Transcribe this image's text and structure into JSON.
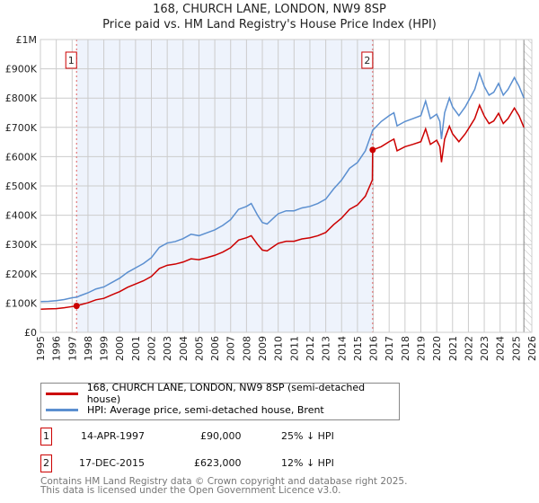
{
  "chart_data": {
    "type": "line",
    "title": "168, CHURCH LANE, LONDON, NW9 8SP",
    "subtitle": "Price paid vs. HM Land Registry's House Price Index (HPI)",
    "xlim": [
      1995,
      2026
    ],
    "ylim": [
      0,
      1000000
    ],
    "x_ticks": [
      "1995",
      "1996",
      "1997",
      "1998",
      "1999",
      "2000",
      "2001",
      "2002",
      "2003",
      "2004",
      "2005",
      "2006",
      "2007",
      "2008",
      "2009",
      "2010",
      "2011",
      "2012",
      "2013",
      "2014",
      "2015",
      "2016",
      "2017",
      "2018",
      "2019",
      "2020",
      "2021",
      "2022",
      "2023",
      "2024",
      "2025",
      "2026"
    ],
    "y_ticks": [
      {
        "v": 0,
        "label": "£0"
      },
      {
        "v": 100000,
        "label": "£100K"
      },
      {
        "v": 200000,
        "label": "£200K"
      },
      {
        "v": 300000,
        "label": "£300K"
      },
      {
        "v": 400000,
        "label": "£400K"
      },
      {
        "v": 500000,
        "label": "£500K"
      },
      {
        "v": 600000,
        "label": "£600K"
      },
      {
        "v": 700000,
        "label": "£700K"
      },
      {
        "v": 800000,
        "label": "£800K"
      },
      {
        "v": 900000,
        "label": "£900K"
      },
      {
        "v": 1000000,
        "label": "£1M"
      }
    ],
    "grid": true,
    "forecast_start": 2025.5,
    "series": [
      {
        "name": "168, CHURCH LANE, LONDON, NW9 8SP (semi-detached house)",
        "color": "#cc0000",
        "unit": "thousand GBP",
        "points": [
          [
            1995,
            79
          ],
          [
            1995.5,
            80
          ],
          [
            1996,
            81
          ],
          [
            1996.5,
            84
          ],
          [
            1997,
            88
          ],
          [
            1997.3,
            90
          ],
          [
            1997.5,
            94
          ],
          [
            1998,
            101
          ],
          [
            1998.5,
            111
          ],
          [
            1999,
            116
          ],
          [
            1999.5,
            128
          ],
          [
            2000,
            139
          ],
          [
            2000.5,
            154
          ],
          [
            2001,
            165
          ],
          [
            2001.5,
            176
          ],
          [
            2002,
            191
          ],
          [
            2002.5,
            218
          ],
          [
            2003,
            229
          ],
          [
            2003.5,
            233
          ],
          [
            2004,
            240
          ],
          [
            2004.5,
            251
          ],
          [
            2005,
            248
          ],
          [
            2005.5,
            255
          ],
          [
            2006,
            263
          ],
          [
            2006.5,
            274
          ],
          [
            2007,
            289
          ],
          [
            2007.5,
            315
          ],
          [
            2008,
            323
          ],
          [
            2008.3,
            330
          ],
          [
            2008.7,
            300
          ],
          [
            2009,
            281
          ],
          [
            2009.3,
            278
          ],
          [
            2009.7,
            293
          ],
          [
            2010,
            304
          ],
          [
            2010.5,
            311
          ],
          [
            2011,
            311
          ],
          [
            2011.5,
            319
          ],
          [
            2012,
            323
          ],
          [
            2012.5,
            330
          ],
          [
            2013,
            341
          ],
          [
            2013.5,
            368
          ],
          [
            2014,
            390
          ],
          [
            2014.5,
            420
          ],
          [
            2015,
            435
          ],
          [
            2015.5,
            465
          ],
          [
            2015.94,
            520
          ],
          [
            2015.96,
            623
          ],
          [
            2016.5,
            634
          ],
          [
            2017,
            651
          ],
          [
            2017.3,
            660
          ],
          [
            2017.5,
            620
          ],
          [
            2018,
            634
          ],
          [
            2018.5,
            642
          ],
          [
            2019,
            651
          ],
          [
            2019.3,
            695
          ],
          [
            2019.6,
            642
          ],
          [
            2020,
            656
          ],
          [
            2020.2,
            634
          ],
          [
            2020.3,
            581
          ],
          [
            2020.5,
            660
          ],
          [
            2020.8,
            704
          ],
          [
            2021,
            678
          ],
          [
            2021.4,
            651
          ],
          [
            2021.8,
            678
          ],
          [
            2022,
            695
          ],
          [
            2022.4,
            730
          ],
          [
            2022.7,
            776
          ],
          [
            2023,
            739
          ],
          [
            2023.3,
            713
          ],
          [
            2023.6,
            722
          ],
          [
            2023.9,
            748
          ],
          [
            2024.2,
            713
          ],
          [
            2024.5,
            730
          ],
          [
            2024.9,
            766
          ],
          [
            2025.2,
            739
          ],
          [
            2025.5,
            700
          ]
        ]
      },
      {
        "name": "HPI: Average price, semi-detached house, Brent",
        "color": "#5b8fd0",
        "unit": "thousand GBP",
        "points": [
          [
            1995,
            105
          ],
          [
            1995.5,
            106
          ],
          [
            1996,
            108
          ],
          [
            1996.5,
            112
          ],
          [
            1997,
            118
          ],
          [
            1997.3,
            120
          ],
          [
            1997.5,
            125
          ],
          [
            1998,
            135
          ],
          [
            1998.5,
            148
          ],
          [
            1999,
            155
          ],
          [
            1999.5,
            170
          ],
          [
            2000,
            185
          ],
          [
            2000.5,
            205
          ],
          [
            2001,
            220
          ],
          [
            2001.5,
            235
          ],
          [
            2002,
            255
          ],
          [
            2002.5,
            290
          ],
          [
            2003,
            305
          ],
          [
            2003.5,
            310
          ],
          [
            2004,
            320
          ],
          [
            2004.5,
            335
          ],
          [
            2005,
            330
          ],
          [
            2005.5,
            340
          ],
          [
            2006,
            350
          ],
          [
            2006.5,
            365
          ],
          [
            2007,
            385
          ],
          [
            2007.5,
            420
          ],
          [
            2008,
            430
          ],
          [
            2008.3,
            440
          ],
          [
            2008.7,
            400
          ],
          [
            2009,
            375
          ],
          [
            2009.3,
            370
          ],
          [
            2009.7,
            390
          ],
          [
            2010,
            405
          ],
          [
            2010.5,
            415
          ],
          [
            2011,
            415
          ],
          [
            2011.5,
            425
          ],
          [
            2012,
            430
          ],
          [
            2012.5,
            440
          ],
          [
            2013,
            455
          ],
          [
            2013.5,
            490
          ],
          [
            2014,
            520
          ],
          [
            2014.5,
            560
          ],
          [
            2015,
            580
          ],
          [
            2015.5,
            620
          ],
          [
            2015.96,
            690
          ],
          [
            2016.5,
            720
          ],
          [
            2017,
            740
          ],
          [
            2017.3,
            750
          ],
          [
            2017.5,
            705
          ],
          [
            2018,
            720
          ],
          [
            2018.5,
            730
          ],
          [
            2019,
            740
          ],
          [
            2019.3,
            790
          ],
          [
            2019.6,
            730
          ],
          [
            2020,
            745
          ],
          [
            2020.2,
            720
          ],
          [
            2020.3,
            660
          ],
          [
            2020.5,
            750
          ],
          [
            2020.8,
            800
          ],
          [
            2021,
            770
          ],
          [
            2021.4,
            740
          ],
          [
            2021.8,
            770
          ],
          [
            2022,
            790
          ],
          [
            2022.4,
            830
          ],
          [
            2022.7,
            885
          ],
          [
            2023,
            840
          ],
          [
            2023.3,
            810
          ],
          [
            2023.6,
            820
          ],
          [
            2023.9,
            850
          ],
          [
            2024.2,
            810
          ],
          [
            2024.5,
            830
          ],
          [
            2024.9,
            870
          ],
          [
            2025.2,
            840
          ],
          [
            2025.5,
            800
          ]
        ]
      }
    ],
    "annotations": [
      {
        "label": "1",
        "x": 1997.28,
        "y": 90000,
        "date": "14-APR-1997",
        "price": "£90,000",
        "hpi": "25% ↓ HPI"
      },
      {
        "label": "2",
        "x": 2015.96,
        "y": 623000,
        "date": "17-DEC-2015",
        "price": "£623,000",
        "hpi": "12% ↓ HPI"
      }
    ]
  },
  "footer": {
    "line1": "Contains HM Land Registry data © Crown copyright and database right 2025.",
    "line2": "This data is licensed under the Open Government Licence v3.0."
  }
}
